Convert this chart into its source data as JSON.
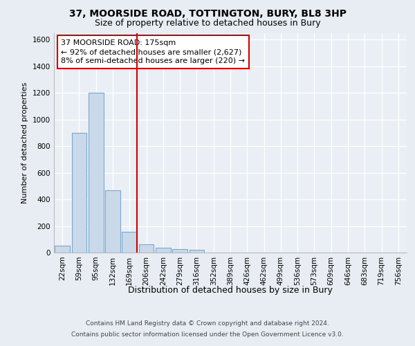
{
  "title1": "37, MOORSIDE ROAD, TOTTINGTON, BURY, BL8 3HP",
  "title2": "Size of property relative to detached houses in Bury",
  "xlabel": "Distribution of detached houses by size in Bury",
  "ylabel": "Number of detached properties",
  "bar_labels": [
    "22sqm",
    "59sqm",
    "95sqm",
    "132sqm",
    "169sqm",
    "206sqm",
    "242sqm",
    "279sqm",
    "316sqm",
    "352sqm",
    "389sqm",
    "426sqm",
    "462sqm",
    "499sqm",
    "536sqm",
    "573sqm",
    "609sqm",
    "646sqm",
    "683sqm",
    "719sqm",
    "756sqm"
  ],
  "bar_values": [
    50,
    900,
    1200,
    470,
    155,
    60,
    35,
    25,
    20,
    0,
    0,
    0,
    0,
    0,
    0,
    0,
    0,
    0,
    0,
    0,
    0
  ],
  "bar_color": "#c9d9ea",
  "bar_edge_color": "#7aa8cc",
  "vline_index": 4,
  "vline_color": "#cc0000",
  "annotation_line1": "37 MOORSIDE ROAD: 175sqm",
  "annotation_line2": "← 92% of detached houses are smaller (2,627)",
  "annotation_line3": "8% of semi-detached houses are larger (220) →",
  "annotation_box_facecolor": "#ffffff",
  "annotation_box_edgecolor": "#cc0000",
  "ylim": [
    0,
    1650
  ],
  "yticks": [
    0,
    200,
    400,
    600,
    800,
    1000,
    1200,
    1400,
    1600
  ],
  "footer1": "Contains HM Land Registry data © Crown copyright and database right 2024.",
  "footer2": "Contains public sector information licensed under the Open Government Licence v3.0.",
  "bg_color": "#e8edf3",
  "plot_bg_color": "#eaeff5",
  "title1_fontsize": 10,
  "title2_fontsize": 9,
  "xlabel_fontsize": 9,
  "ylabel_fontsize": 8,
  "tick_fontsize": 7.5,
  "footer_fontsize": 6.5
}
